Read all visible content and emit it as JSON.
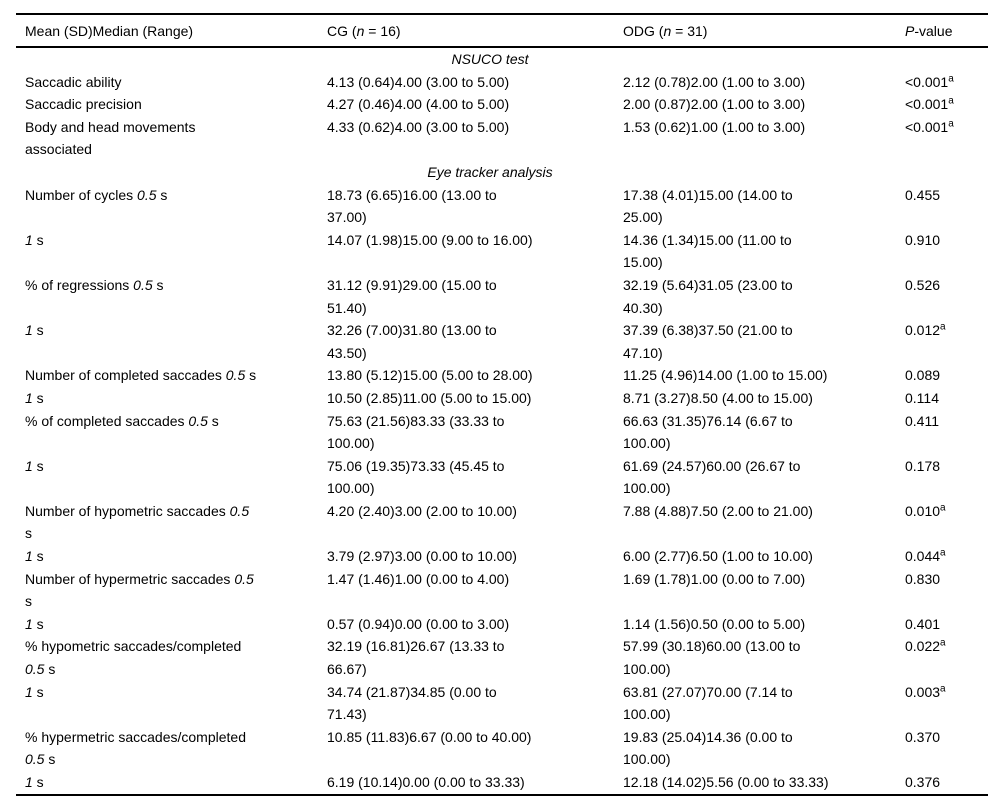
{
  "colors": {
    "background": "#ffffff",
    "text": "#000000",
    "rule": "#000000"
  },
  "table": {
    "header": {
      "col1": [
        {
          "t": "Mean (SD)Median (Range)"
        }
      ],
      "col2": [
        {
          "t": "CG ("
        },
        {
          "t": "n",
          "i": true
        },
        {
          "t": " = 16)"
        }
      ],
      "col3": [
        {
          "t": "ODG ("
        },
        {
          "t": "n",
          "i": true
        },
        {
          "t": " = 31)"
        }
      ],
      "col4": [
        {
          "t": "P",
          "i": true
        },
        {
          "t": "-value"
        }
      ]
    },
    "rows": [
      {
        "type": "section",
        "label": [
          {
            "t": "NSUCO test",
            "i": true
          }
        ]
      },
      {
        "type": "data",
        "label": [
          {
            "t": "Saccadic ability"
          }
        ],
        "cg": "4.13 (0.64)4.00 (3.00 to 5.00)",
        "odg": "2.12 (0.78)2.00 (1.00 to 3.00)",
        "p": "<0.001",
        "p_sup": "a"
      },
      {
        "type": "data",
        "label": [
          {
            "t": "Saccadic precision"
          }
        ],
        "cg": "4.27 (0.46)4.00 (4.00 to 5.00)",
        "odg": "2.00 (0.87)2.00 (1.00 to 3.00)",
        "p": "<0.001",
        "p_sup": "a"
      },
      {
        "type": "data",
        "label": [
          {
            "t": "Body and head movements\nassociated"
          }
        ],
        "cg": "4.33 (0.62)4.00 (3.00 to 5.00)",
        "odg": "1.53 (0.62)1.00 (1.00 to 3.00)",
        "p": "<0.001",
        "p_sup": "a"
      },
      {
        "type": "section",
        "label": [
          {
            "t": "Eye tracker analysis",
            "i": true
          }
        ]
      },
      {
        "type": "data",
        "label": [
          {
            "t": "Number of cycles "
          },
          {
            "t": "0.5",
            "i": true
          },
          {
            "t": " s"
          }
        ],
        "cg": "18.73 (6.65)16.00 (13.00 to\n37.00)",
        "odg": "17.38 (4.01)15.00 (14.00 to\n25.00)",
        "p": "0.455",
        "p_sup": ""
      },
      {
        "type": "data",
        "label": [
          {
            "t": "1",
            "i": true
          },
          {
            "t": " s"
          }
        ],
        "cg": "14.07 (1.98)15.00 (9.00 to 16.00)",
        "odg": "14.36 (1.34)15.00 (11.00 to\n15.00)",
        "p": "0.910",
        "p_sup": ""
      },
      {
        "type": "data",
        "label": [
          {
            "t": "% of regressions "
          },
          {
            "t": "0.5",
            "i": true
          },
          {
            "t": " s"
          }
        ],
        "cg": "31.12 (9.91)29.00 (15.00 to\n51.40)",
        "odg": "32.19 (5.64)31.05 (23.00 to\n40.30)",
        "p": "0.526",
        "p_sup": ""
      },
      {
        "type": "data",
        "label": [
          {
            "t": "1",
            "i": true
          },
          {
            "t": " s"
          }
        ],
        "cg": "32.26 (7.00)31.80 (13.00 to\n43.50)",
        "odg": "37.39 (6.38)37.50 (21.00 to\n47.10)",
        "p": "0.012",
        "p_sup": "a"
      },
      {
        "type": "data",
        "label": [
          {
            "t": "Number of completed saccades "
          },
          {
            "t": "0.5",
            "i": true
          },
          {
            "t": " s"
          }
        ],
        "cg": "13.80 (5.12)15.00 (5.00 to 28.00)",
        "odg": "11.25 (4.96)14.00 (1.00 to 15.00)",
        "p": "0.089",
        "p_sup": ""
      },
      {
        "type": "data",
        "label": [
          {
            "t": "1",
            "i": true
          },
          {
            "t": " s"
          }
        ],
        "cg": "10.50 (2.85)11.00 (5.00 to 15.00)",
        "odg": "8.71 (3.27)8.50 (4.00 to 15.00)",
        "p": "0.114",
        "p_sup": ""
      },
      {
        "type": "data",
        "label": [
          {
            "t": "% of completed saccades "
          },
          {
            "t": "0.5",
            "i": true
          },
          {
            "t": " s"
          }
        ],
        "cg": "75.63 (21.56)83.33 (33.33 to\n100.00)",
        "odg": "66.63 (31.35)76.14 (6.67 to\n100.00)",
        "p": "0.411",
        "p_sup": ""
      },
      {
        "type": "data",
        "label": [
          {
            "t": "1",
            "i": true
          },
          {
            "t": " s"
          }
        ],
        "cg": "75.06 (19.35)73.33 (45.45 to\n100.00)",
        "odg": "61.69 (24.57)60.00 (26.67 to\n100.00)",
        "p": "0.178",
        "p_sup": ""
      },
      {
        "type": "data",
        "label": [
          {
            "t": "Number of hypometric saccades "
          },
          {
            "t": "0.5",
            "i": true
          },
          {
            "t": "\ns"
          }
        ],
        "cg": "4.20 (2.40)3.00 (2.00 to 10.00)",
        "odg": "7.88 (4.88)7.50 (2.00 to 21.00)",
        "p": "0.010",
        "p_sup": "a"
      },
      {
        "type": "data",
        "label": [
          {
            "t": "1",
            "i": true
          },
          {
            "t": " s"
          }
        ],
        "cg": "3.79 (2.97)3.00 (0.00 to 10.00)",
        "odg": "6.00 (2.77)6.50 (1.00 to 10.00)",
        "p": "0.044",
        "p_sup": "a"
      },
      {
        "type": "data",
        "label": [
          {
            "t": "Number of hypermetric saccades "
          },
          {
            "t": "0.5",
            "i": true
          },
          {
            "t": "\ns"
          }
        ],
        "cg": "1.47 (1.46)1.00 (0.00 to 4.00)",
        "odg": "1.69 (1.78)1.00 (0.00 to 7.00)",
        "p": "0.830",
        "p_sup": ""
      },
      {
        "type": "data",
        "label": [
          {
            "t": "1",
            "i": true
          },
          {
            "t": " s"
          }
        ],
        "cg": "0.57 (0.94)0.00 (0.00 to 3.00)",
        "odg": "1.14 (1.56)0.50 (0.00 to 5.00)",
        "p": "0.401",
        "p_sup": ""
      },
      {
        "type": "data",
        "label": [
          {
            "t": "% hypometric saccades/completed\n"
          },
          {
            "t": "0.5",
            "i": true
          },
          {
            "t": " s"
          }
        ],
        "cg": "32.19 (16.81)26.67 (13.33 to\n66.67)",
        "odg": "57.99 (30.18)60.00 (13.00 to\n100.00)",
        "p": "0.022",
        "p_sup": "a"
      },
      {
        "type": "data",
        "label": [
          {
            "t": "1",
            "i": true
          },
          {
            "t": " s"
          }
        ],
        "cg": "34.74 (21.87)34.85 (0.00 to\n71.43)",
        "odg": "63.81 (27.07)70.00 (7.14 to\n100.00)",
        "p": "0.003",
        "p_sup": "a"
      },
      {
        "type": "data",
        "label": [
          {
            "t": "% hypermetric saccades/completed\n"
          },
          {
            "t": "0.5",
            "i": true
          },
          {
            "t": " s"
          }
        ],
        "cg": "10.85 (11.83)6.67 (0.00 to 40.00)",
        "odg": "19.83 (25.04)14.36 (0.00 to\n100.00)",
        "p": "0.370",
        "p_sup": ""
      },
      {
        "type": "data",
        "label": [
          {
            "t": "1",
            "i": true
          },
          {
            "t": " s"
          }
        ],
        "cg": "6.19 (10.14)0.00 (0.00 to 33.33)",
        "odg": "12.18 (14.02)5.56 (0.00 to 33.33)",
        "p": "0.376",
        "p_sup": ""
      }
    ]
  }
}
